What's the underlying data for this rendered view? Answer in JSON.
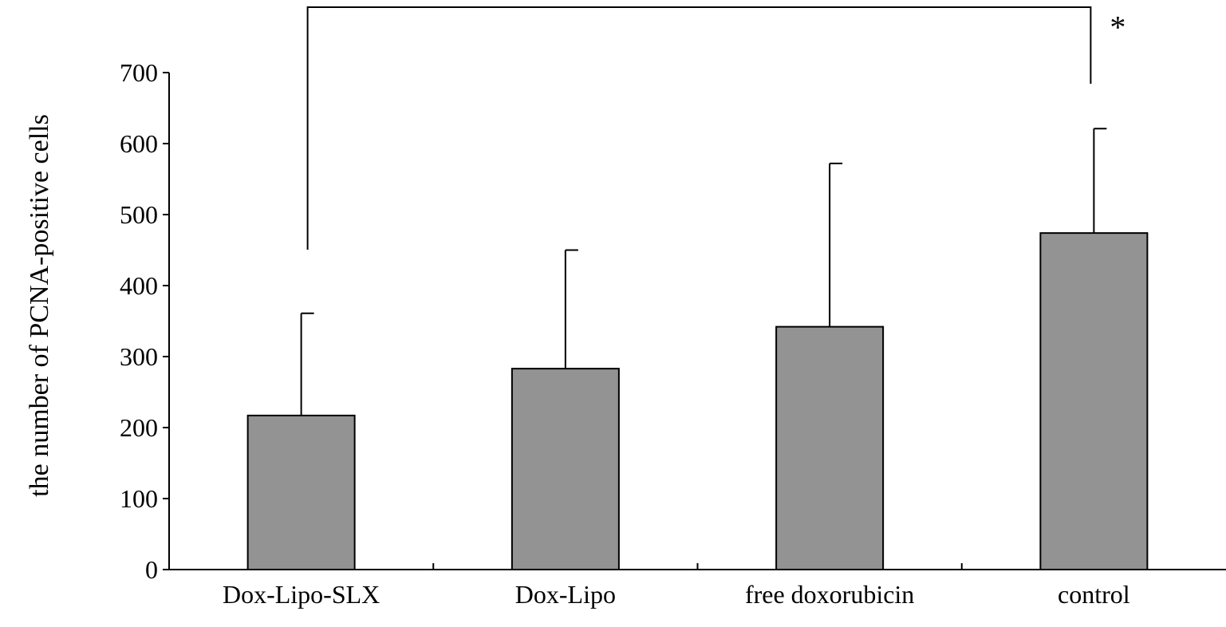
{
  "chart_data": {
    "type": "bar",
    "title": "",
    "xlabel": "",
    "ylabel": "the number of PCNA-positive cells",
    "categories": [
      "Dox-Lipo-SLX",
      "Dox-Lipo",
      "free doxorubicin",
      "control"
    ],
    "values": [
      217,
      283,
      342,
      474
    ],
    "error_upper": [
      361,
      450,
      572,
      621
    ],
    "ylim": [
      0,
      700
    ],
    "yticks": [
      {
        "value": 0,
        "label": "0"
      },
      {
        "value": 100,
        "label": "100"
      },
      {
        "value": 200,
        "label": "200"
      },
      {
        "value": 300,
        "label": "300"
      },
      {
        "value": 400,
        "label": "400"
      },
      {
        "value": 500,
        "label": "500"
      },
      {
        "value": 600,
        "label": "600"
      },
      {
        "value": 700,
        "label": "700"
      }
    ],
    "grid": false,
    "bar_color": "#939393",
    "significance": {
      "from": "Dox-Lipo-SLX",
      "to": "control",
      "marker": "*"
    }
  }
}
